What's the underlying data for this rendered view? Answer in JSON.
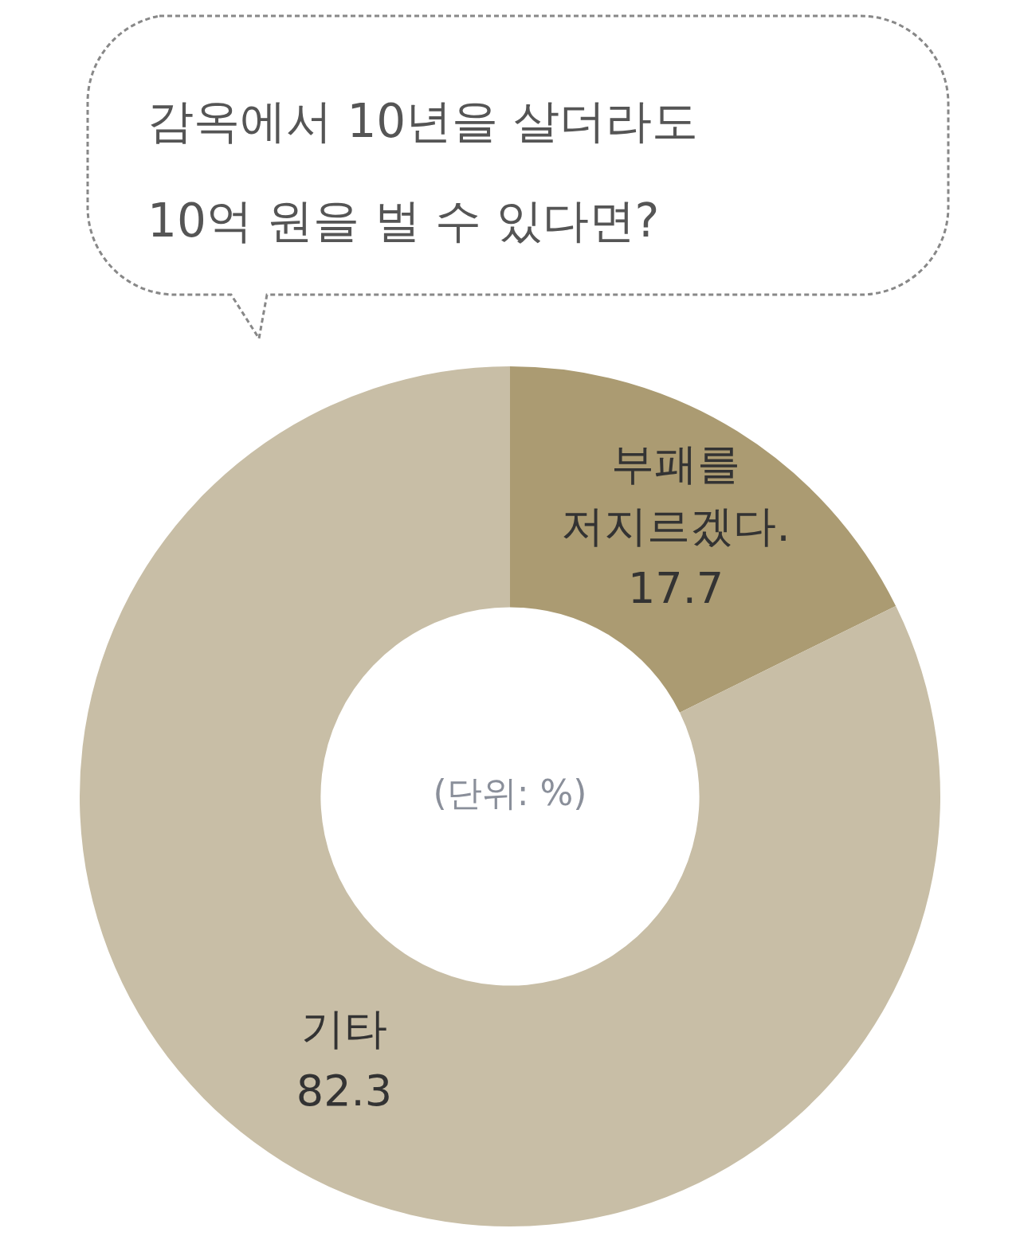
{
  "chart_data": {
    "type": "donut",
    "title": "감옥에서 10년을 살더라도\n10억 원을 벌 수 있다면?",
    "categories": [
      "부패를\n저지르겠다.",
      "기타"
    ],
    "values": [
      17.7,
      82.3
    ],
    "colors": [
      "#ab9b72",
      "#c8bea6"
    ],
    "data_labels": true,
    "annotations": [
      "(단위: %)"
    ]
  }
}
